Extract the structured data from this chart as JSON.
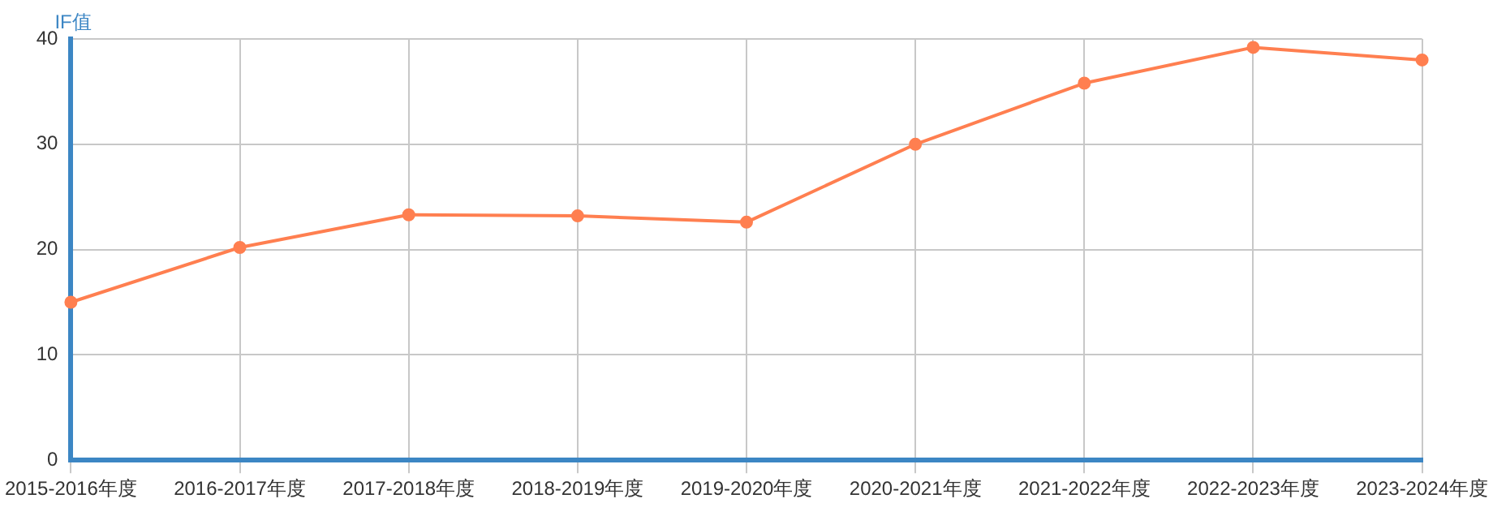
{
  "chart_data": {
    "type": "line",
    "ylabel": "IF值",
    "categories": [
      "2015-2016年度",
      "2016-2017年度",
      "2017-2018年度",
      "2018-2019年度",
      "2019-2020年度",
      "2020-2021年度",
      "2021-2022年度",
      "2022-2023年度",
      "2023-2024年度"
    ],
    "series": [
      {
        "color": "#ff7f50",
        "values": [
          15.0,
          20.2,
          23.3,
          23.2,
          22.6,
          30.0,
          35.8,
          39.2,
          38.0
        ]
      }
    ],
    "ylim": [
      0,
      40
    ],
    "yticks": [
      0,
      10,
      20,
      30,
      40
    ],
    "grid": true,
    "marker": "circle",
    "line_style": "solid",
    "legend": false
  }
}
